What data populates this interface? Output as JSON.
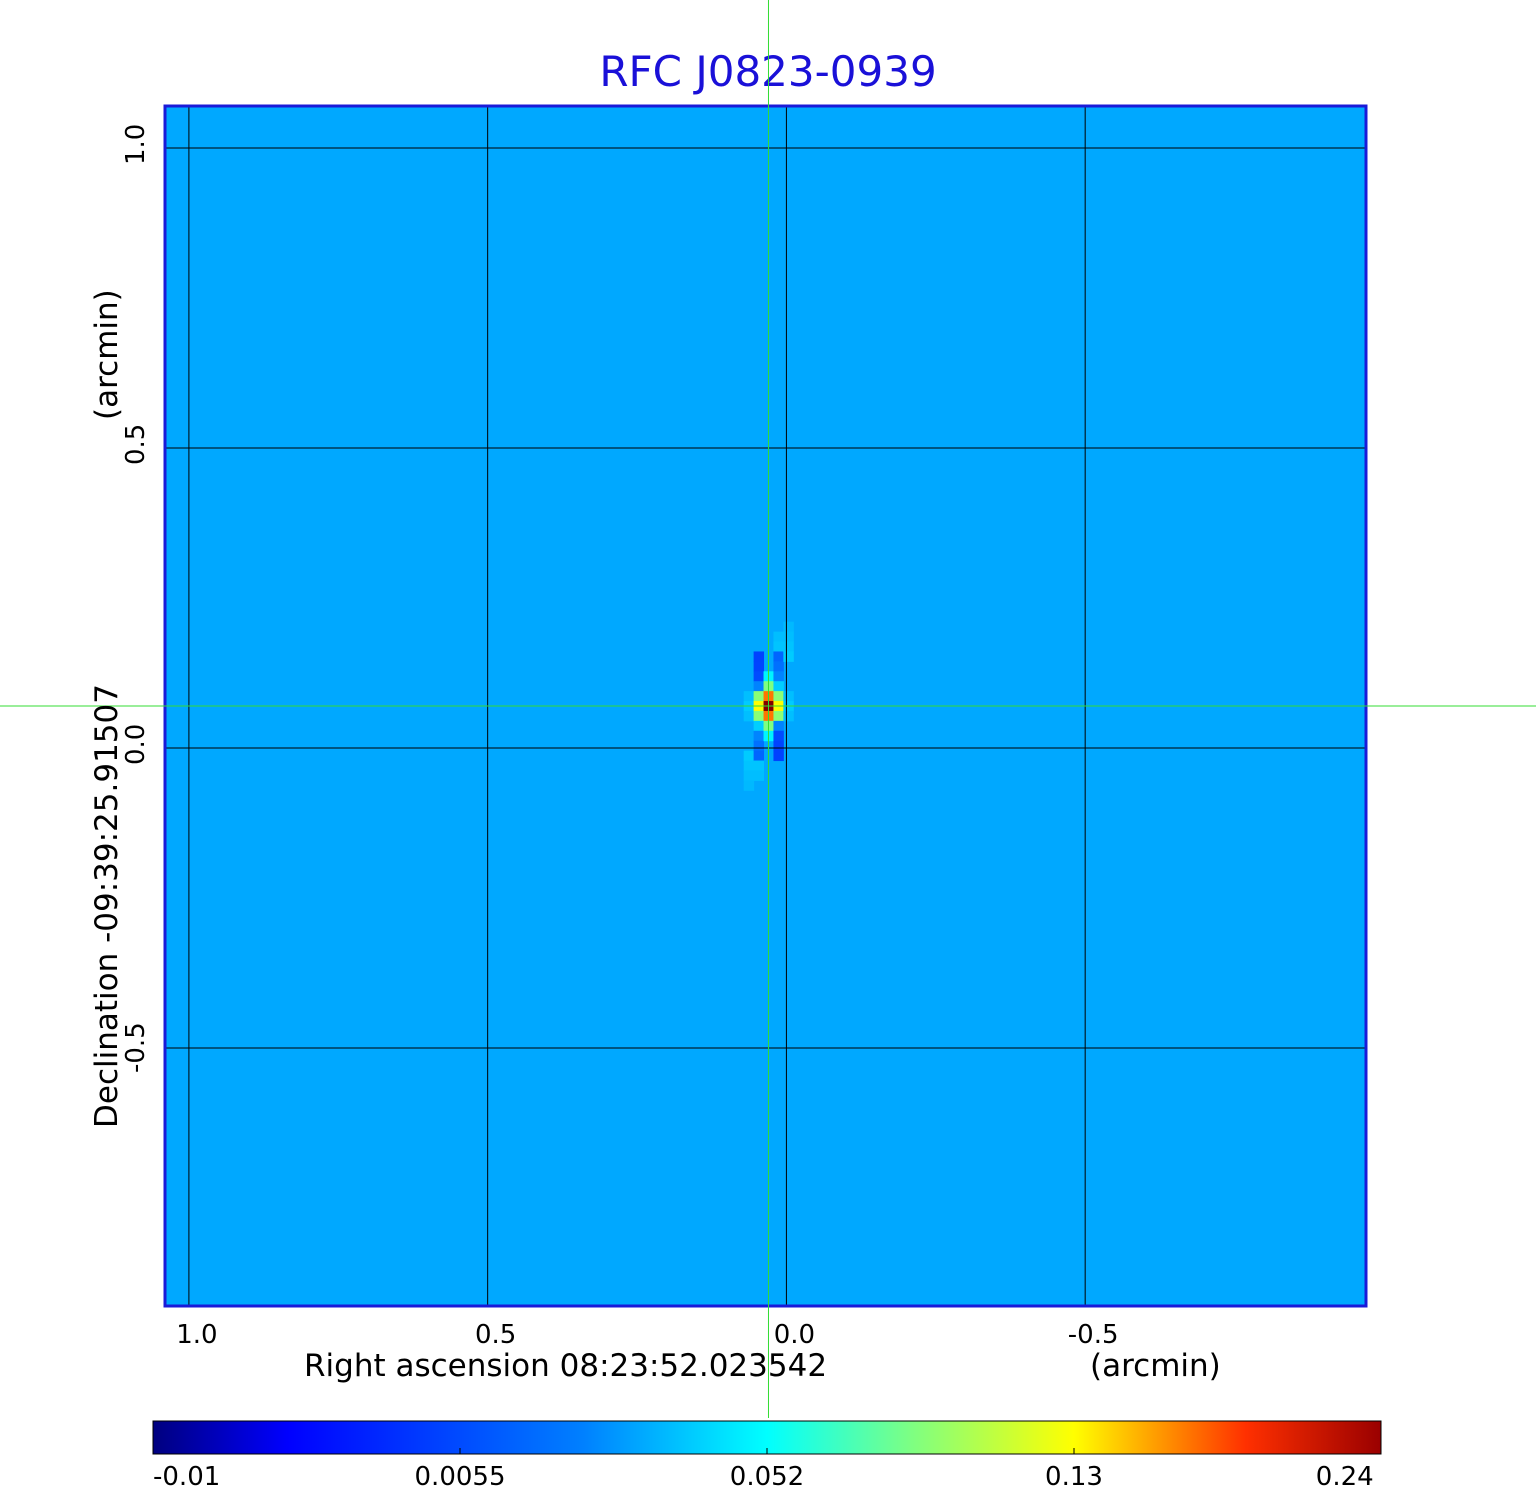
{
  "chart_data": {
    "type": "heatmap",
    "title": "RFC J0823-0939",
    "xlabel": "Right ascension  08:23:52.023542",
    "xunit": "(arcmin)",
    "ylabel": "Declination  -09:39:25.91507",
    "yunit": "(arcmin)",
    "x_ticks": [
      "1.0",
      "0.5",
      "0.0",
      "-0.5"
    ],
    "x_tick_values": [
      1.0,
      0.5,
      0.0,
      -0.5
    ],
    "y_ticks": [
      "1.0",
      "0.5",
      "0.0",
      "-0.5"
    ],
    "y_tick_values": [
      1.0,
      0.5,
      0.0,
      -0.5
    ],
    "xlim": [
      1.04,
      -0.97
    ],
    "ylim": [
      -0.93,
      1.07
    ],
    "grid": true,
    "colormap": "jet",
    "colorbar_ticks": [
      "-0.01",
      "0.0055",
      "0.052",
      "0.13",
      "0.24"
    ],
    "colorbar_tick_values": [
      -0.01,
      0.0055,
      0.052,
      0.13,
      0.24
    ],
    "peak": {
      "x": 0.03,
      "y": 0.07,
      "value": 0.24
    },
    "crosshair": {
      "x": 0.03,
      "y": 0.07
    },
    "background_level": 0.0
  },
  "colors": {
    "title": "#1a10d8",
    "frame": "#1a1ad8",
    "crosshair": "#33dd33",
    "grid": "#000000"
  }
}
